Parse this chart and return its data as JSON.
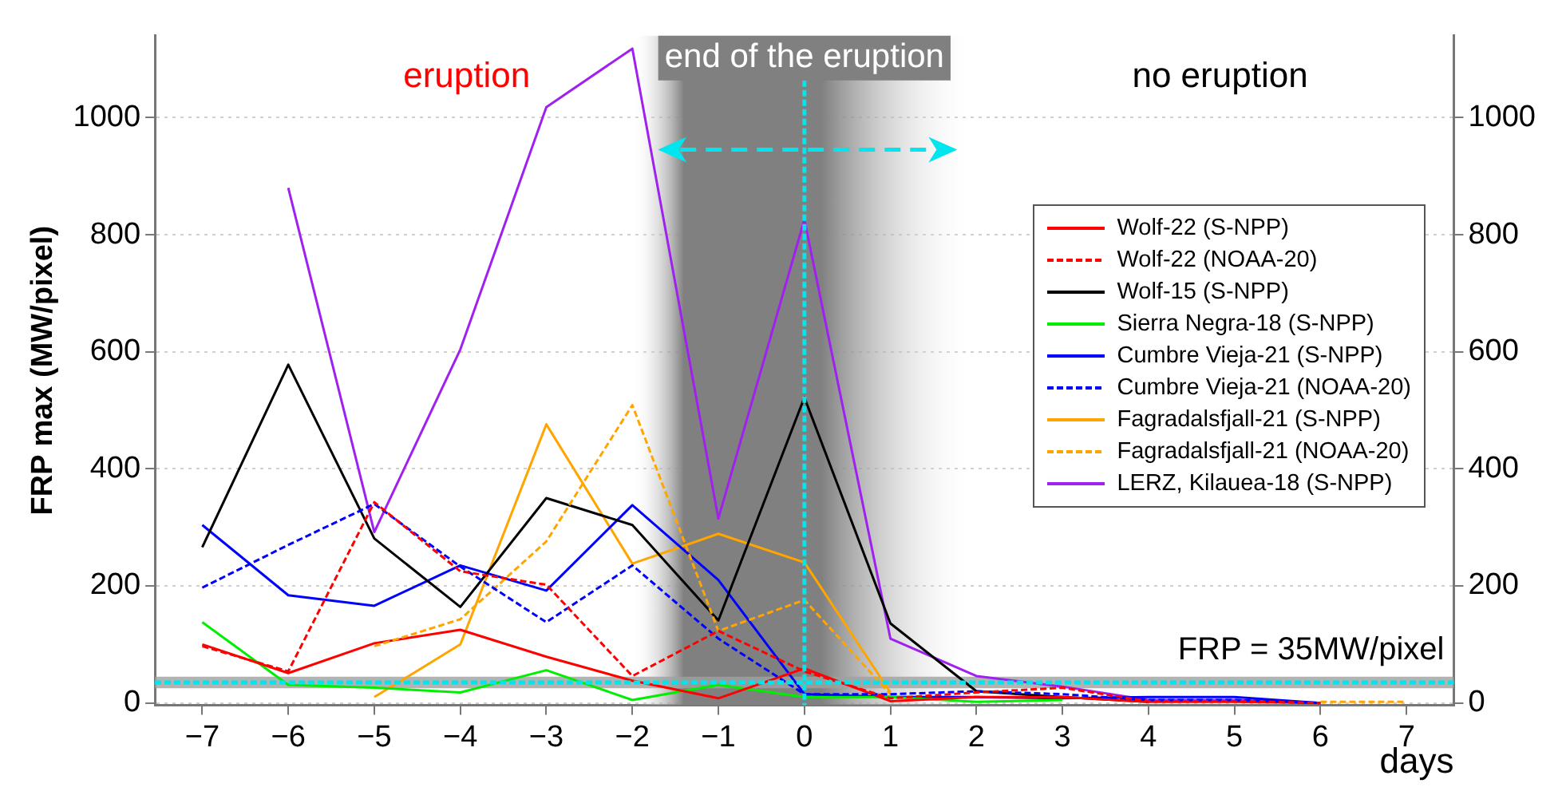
{
  "chart_data": {
    "type": "line",
    "x": [
      -7,
      -6,
      -5,
      -4,
      -3,
      -2,
      -1,
      0,
      1,
      2,
      3,
      4,
      5,
      6,
      7
    ],
    "xlabel": "days",
    "ylabel": "FRP max (MW/pixel)",
    "xlim": [
      -7.55,
      7.55
    ],
    "xticks": [
      {
        "value": -7,
        "label": "−7"
      },
      {
        "value": -6,
        "label": "−6"
      },
      {
        "value": -5,
        "label": "−5"
      },
      {
        "value": -4,
        "label": "−4"
      },
      {
        "value": -3,
        "label": "−3"
      },
      {
        "value": -2,
        "label": "−2"
      },
      {
        "value": -1,
        "label": "−1"
      },
      0,
      1,
      2,
      3,
      4,
      5,
      6,
      7
    ],
    "ylim": [
      -4,
      1140
    ],
    "yticks": [
      0,
      200,
      400,
      600,
      800,
      1000
    ],
    "y2lim": [
      -4,
      1140
    ],
    "y2ticks": [
      0,
      200,
      400,
      600,
      800,
      1000
    ],
    "grid": "y",
    "legend": "right",
    "marker": "none",
    "series": [
      {
        "name": "Wolf-22 (S-NPP)",
        "color": "#ff0000",
        "line_style": "solid",
        "values": [
          100,
          51,
          102,
          125,
          79,
          38,
          8,
          59,
          3,
          10,
          10,
          2,
          2,
          0,
          null
        ]
      },
      {
        "name": "Wolf-22 (NOAA-20)",
        "color": "#ff0000",
        "line_style": "dashed",
        "values": [
          97,
          54,
          343,
          225,
          202,
          46,
          123,
          54,
          8,
          18,
          26,
          3,
          3,
          0,
          null
        ]
      },
      {
        "name": "Wolf-15 (S-NPP)",
        "color": "#000000",
        "line_style": "solid",
        "values": [
          266,
          578,
          281,
          164,
          350,
          304,
          141,
          522,
          136,
          20,
          10,
          2,
          null,
          null,
          null
        ]
      },
      {
        "name": "Sierra Negra-18 (S-NPP)",
        "color": "#00ee00",
        "line_style": "solid",
        "values": [
          138,
          31,
          26,
          18,
          56,
          5,
          31,
          10,
          10,
          2,
          5,
          null,
          null,
          null,
          null
        ]
      },
      {
        "name": "Cumbre Vieja-21 (S-NPP)",
        "color": "#0000ff",
        "line_style": "solid",
        "values": [
          304,
          184,
          166,
          235,
          192,
          338,
          210,
          15,
          10,
          10,
          8,
          10,
          10,
          0,
          null
        ]
      },
      {
        "name": "Cumbre Vieja-21 (NOAA-20)",
        "color": "#0000ff",
        "line_style": "dashed",
        "values": [
          197,
          270,
          340,
          233,
          138,
          235,
          110,
          15,
          15,
          20,
          15,
          5,
          5,
          0,
          null
        ]
      },
      {
        "name": "Fagradalsfjall-21 (S-NPP)",
        "color": "#ffa500",
        "line_style": "solid",
        "values": [
          null,
          null,
          10,
          100,
          476,
          238,
          289,
          240,
          18,
          null,
          null,
          null,
          null,
          null,
          null
        ]
      },
      {
        "name": "Fagradalsfjall-21 (NOAA-20)",
        "color": "#ffa500",
        "line_style": "dashed",
        "values": [
          null,
          null,
          97,
          143,
          276,
          509,
          123,
          176,
          15,
          null,
          null,
          null,
          null,
          2,
          2
        ]
      },
      {
        "name": "LERZ, Kilauea-18 (S-NPP)",
        "color": "#a020f0",
        "line_style": "solid",
        "values": [
          null,
          880,
          292,
          604,
          1018,
          1118,
          315,
          826,
          110,
          46,
          28,
          5,
          5,
          0,
          null
        ]
      }
    ],
    "bands": [
      {
        "axis": "x",
        "from": -2,
        "to": 2,
        "label": "end of the eruption",
        "color": "#808080"
      },
      {
        "axis": "y",
        "from": 25,
        "to": 45,
        "color": "#a0a0a0"
      }
    ],
    "ref_lines": [
      {
        "axis": "y",
        "value": 35,
        "label": "FRP = 35MW/pixel",
        "color": "#00e5ee",
        "line_style": "dashed"
      },
      {
        "axis": "x",
        "value": 0,
        "color": "#00e5ee",
        "line_style": "dashed"
      }
    ],
    "annotations": [
      "eruption",
      "no eruption"
    ]
  }
}
